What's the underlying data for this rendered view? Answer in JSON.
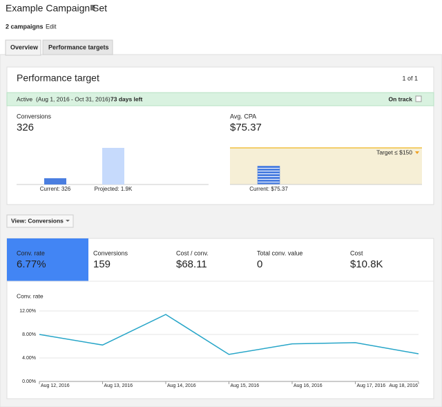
{
  "header": {
    "title": "Example Campaign Set",
    "subtitle": "2 campaigns",
    "edit": "Edit"
  },
  "tabs": [
    "Overview",
    "Performance targets"
  ],
  "performance": {
    "title": "Performance target",
    "pager": "1 of 1",
    "status": {
      "state": "Active",
      "period": "(Aug 1, 2016 - Oct 31, 2016)",
      "remaining": "73 days left",
      "health": "On track"
    },
    "conversions": {
      "label": "Conversions",
      "value": "326",
      "ylim": [
        0,
        1900
      ],
      "bars": [
        {
          "label": "Current: 326",
          "value": 326,
          "color": "#4a7ee0"
        },
        {
          "label": "Projected: 1.9K",
          "value": 1900,
          "color": "#c6dafc"
        }
      ]
    },
    "cpa": {
      "label": "Avg. CPA",
      "value": "$75.37",
      "target_label": "Target ≤ $150",
      "target": 150,
      "ylim": [
        0,
        150
      ],
      "bars": [
        {
          "label": "Current: $75.37",
          "value": 75.37,
          "color": "#4a7ee0"
        }
      ]
    }
  },
  "view": "View: Conversions",
  "metrics": [
    {
      "label": "Conv. rate",
      "value": "6.77%"
    },
    {
      "label": "Conversions",
      "value": "159"
    },
    {
      "label": "Cost / conv.",
      "value": "$68.11"
    },
    {
      "label": "Total conv. value",
      "value": "0"
    },
    {
      "label": "Cost",
      "value": "$10.8K"
    }
  ],
  "chart_data": {
    "type": "line",
    "y_label": "Conv. rate",
    "color": "#26a5c8",
    "categories": [
      "Aug 12, 2016",
      "Aug 13, 2016",
      "Aug 14, 2016",
      "Aug 15, 2016",
      "Aug 16, 2016",
      "Aug 17, 2016",
      "Aug 18, 2016"
    ],
    "values": [
      8.0,
      6.2,
      11.4,
      4.6,
      6.4,
      6.6,
      4.7
    ],
    "ylim": [
      0,
      12
    ],
    "yticks": [
      {
        "value": 0,
        "label": "0.00%"
      },
      {
        "value": 4,
        "label": "4.00%"
      },
      {
        "value": 8,
        "label": "8.00%"
      },
      {
        "value": 12,
        "label": "12.00%"
      }
    ],
    "grid": true
  }
}
